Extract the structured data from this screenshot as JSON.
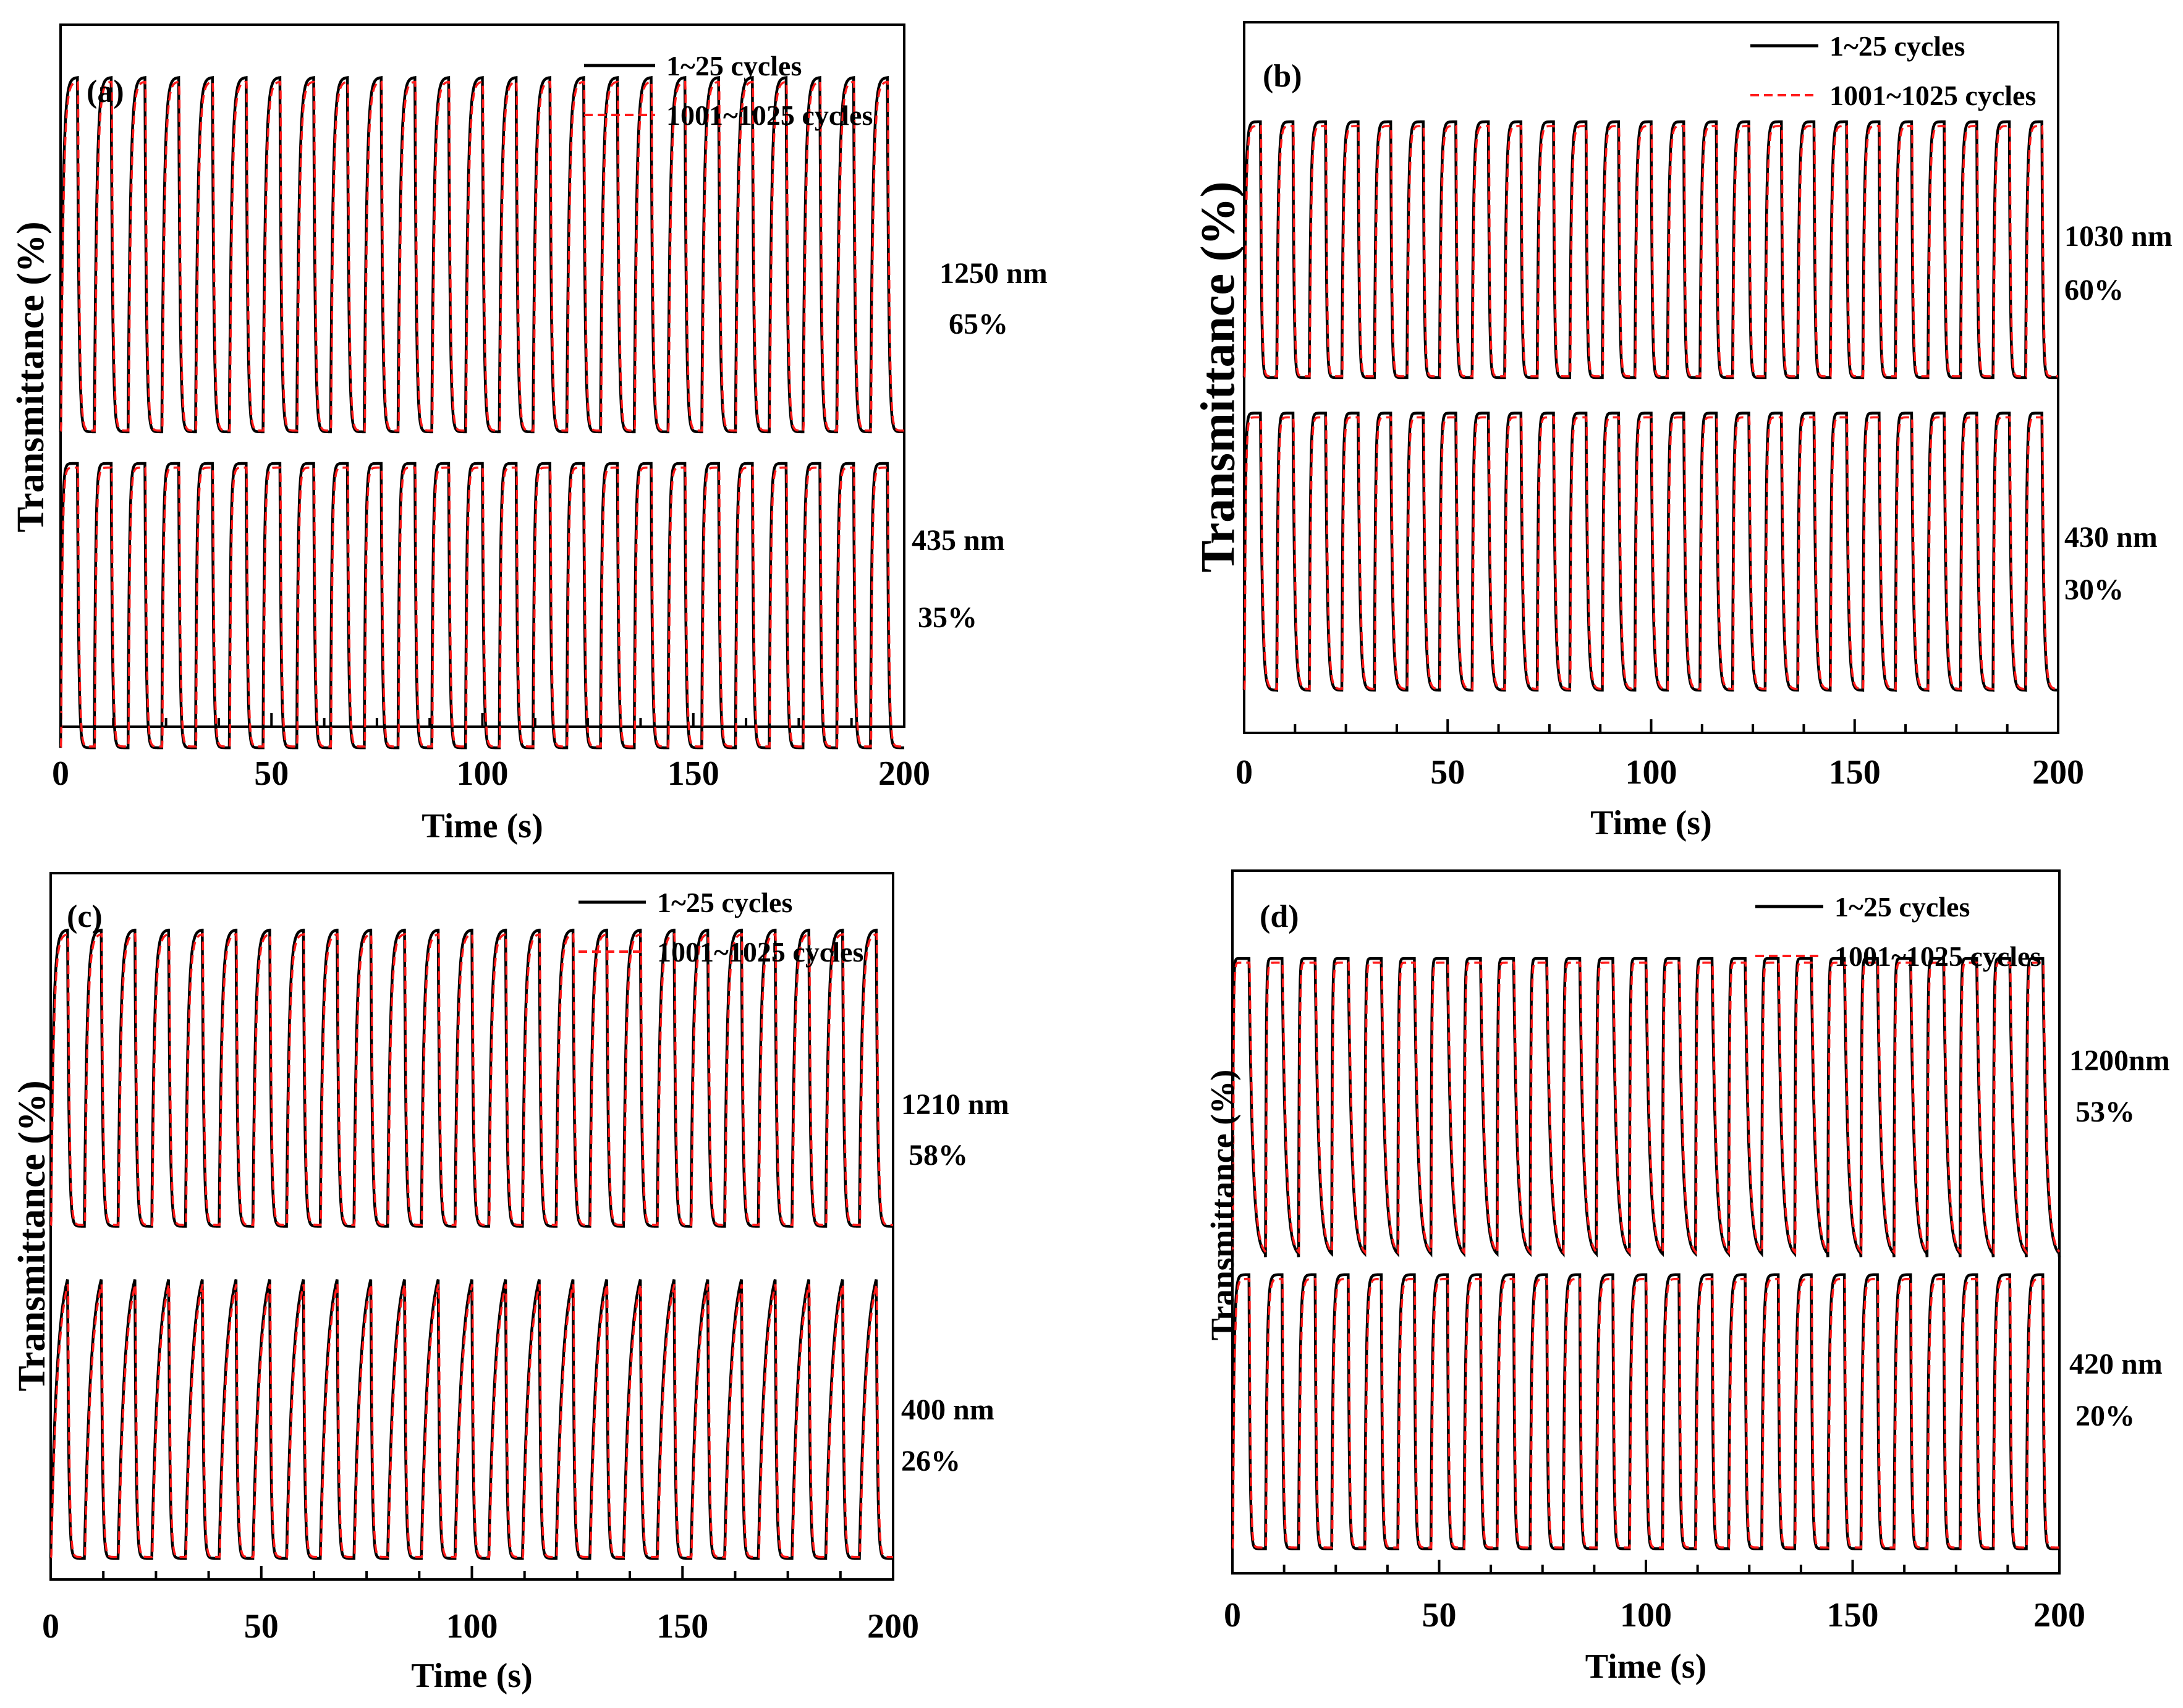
{
  "figure": {
    "colors": {
      "series_1": "#000000",
      "series_2": "#ff1a1a",
      "axis": "#000000"
    }
  },
  "chart_data": [
    {
      "panel_label": "(a)",
      "type": "line",
      "xlabel": "Time (s)",
      "ylabel": "Transmittance (%)",
      "xlim": [
        0,
        200
      ],
      "x_ticks": [
        0,
        50,
        100,
        150,
        200
      ],
      "legend": [
        "1~25 cycles",
        "1001~1025 cycles"
      ],
      "legend_position": "top-right",
      "period_s": 8,
      "traces": [
        {
          "wavelength": "1250 nm",
          "modulation": "65%",
          "cycles": 25,
          "high": 0.925,
          "low": 0.42,
          "rise_tau": 0.55,
          "fall_tau": 0.35
        },
        {
          "wavelength": "435 nm",
          "modulation": "35%",
          "cycles": 25,
          "high": 0.375,
          "low": -0.03,
          "rise_tau": 0.3,
          "fall_tau": 0.3
        }
      ]
    },
    {
      "panel_label": "(b)",
      "type": "line",
      "xlabel": "Time (s)",
      "ylabel": "Transmittance (%)",
      "xlim": [
        0,
        200
      ],
      "x_ticks": [
        0,
        50,
        100,
        150,
        200
      ],
      "legend": [
        "1~25 cycles",
        "1001~1025 cycles"
      ],
      "legend_position": "top-right",
      "period_s": 8,
      "traces": [
        {
          "wavelength": "1030 nm",
          "modulation": "60%",
          "cycles": 25,
          "high": 0.86,
          "low": 0.5,
          "rise_tau": 0.35,
          "fall_tau": 0.25
        },
        {
          "wavelength": "430 nm",
          "modulation": "30%",
          "cycles": 25,
          "high": 0.45,
          "low": 0.06,
          "rise_tau": 0.25,
          "fall_tau": 0.45
        }
      ]
    },
    {
      "panel_label": "(c)",
      "type": "line",
      "xlabel": "Time (s)",
      "ylabel": "Transmittance (%)",
      "xlim": [
        0,
        200
      ],
      "x_ticks": [
        0,
        50,
        100,
        150,
        200
      ],
      "legend": [
        "1~25 cycles",
        "1001~1025 cycles"
      ],
      "legend_position": "top-right",
      "period_s": 8,
      "traces": [
        {
          "wavelength": "1210 nm",
          "modulation": "58%",
          "cycles": 25,
          "high": 0.92,
          "low": 0.5,
          "rise_tau": 0.6,
          "fall_tau": 0.35
        },
        {
          "wavelength": "400 nm",
          "modulation": "26%",
          "cycles": 25,
          "high": 0.46,
          "low": 0.03,
          "rise_tau": 1.6,
          "fall_tau": 0.3
        }
      ]
    },
    {
      "panel_label": "(d)",
      "type": "line",
      "xlabel": "Time (s)",
      "ylabel": "Transmittance (%)",
      "xlim": [
        0,
        200
      ],
      "x_ticks": [
        0,
        50,
        100,
        150,
        200
      ],
      "legend": [
        "1~25 cycles",
        "1001~1025 cycles"
      ],
      "legend_position": "top-right",
      "period_s": 8,
      "traces": [
        {
          "wavelength": "1200nm",
          "modulation": "53%",
          "cycles": 25,
          "high": 0.875,
          "low": 0.45,
          "rise_tau": 0.15,
          "fall_tau": 0.9
        },
        {
          "wavelength": "420 nm",
          "modulation": "20%",
          "cycles": 25,
          "high": 0.425,
          "low": 0.035,
          "rise_tau": 0.35,
          "fall_tau": 0.25
        }
      ]
    }
  ]
}
